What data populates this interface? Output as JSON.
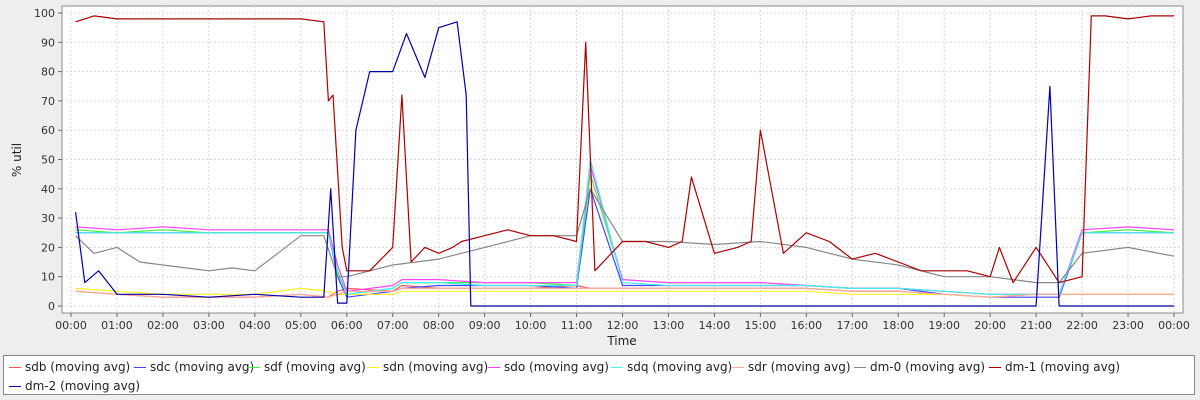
{
  "chart_data": {
    "type": "line",
    "title": "",
    "xlabel": "Time",
    "ylabel": "% util",
    "ylim": [
      0,
      100
    ],
    "y_ticks": [
      0,
      10,
      20,
      30,
      40,
      50,
      60,
      70,
      80,
      90,
      100
    ],
    "x_ticks": [
      "00:00",
      "01:00",
      "02:00",
      "03:00",
      "04:00",
      "05:00",
      "06:00",
      "07:00",
      "08:00",
      "09:00",
      "10:00",
      "11:00",
      "12:00",
      "13:00",
      "14:00",
      "15:00",
      "16:00",
      "17:00",
      "18:00",
      "19:00",
      "20:00",
      "21:00",
      "22:00",
      "23:00",
      "00:00"
    ],
    "grid": true,
    "legend_position": "bottom",
    "x_unit": "hours since 00:00",
    "series": [
      {
        "name": "sdb (moving avg)",
        "color": "#ff5555",
        "x": [
          0.1,
          1,
          2,
          3,
          4,
          5,
          5.6,
          5.8,
          6,
          7,
          7.2,
          8,
          9,
          10,
          11,
          11.3,
          12,
          13,
          14,
          15,
          16,
          17,
          18,
          19,
          20,
          21,
          21.5,
          22,
          23,
          24
        ],
        "y": [
          5,
          4,
          3,
          3,
          3,
          4,
          3,
          5,
          6,
          5,
          7,
          6,
          6,
          6,
          7,
          6,
          6,
          6,
          6,
          6,
          6,
          5,
          5,
          4,
          3,
          4,
          4,
          4,
          4,
          4
        ]
      },
      {
        "name": "sdc (moving avg)",
        "color": "#4444ff",
        "x": [
          0.1,
          1,
          2,
          3,
          4,
          5,
          5.6,
          5.8,
          6,
          7,
          7.2,
          8,
          9,
          10,
          11,
          11.3,
          12,
          13,
          14,
          15,
          16,
          17,
          18,
          19,
          20,
          21,
          21.5,
          22,
          23,
          24
        ],
        "y": [
          25,
          25,
          25,
          25,
          25,
          25,
          25,
          10,
          3,
          5,
          6,
          7,
          7,
          7,
          6,
          40,
          7,
          7,
          7,
          7,
          7,
          6,
          6,
          4,
          3,
          3,
          3,
          25,
          25,
          25
        ]
      },
      {
        "name": "sdf (moving avg)",
        "color": "#44ee44",
        "x": [
          0.1,
          1,
          2,
          3,
          4,
          5,
          5.6,
          5.8,
          6,
          7,
          7.2,
          8,
          9,
          10,
          11,
          11.3,
          12,
          13,
          14,
          15,
          16,
          17,
          18,
          19,
          20,
          21,
          21.5,
          22,
          23,
          24
        ],
        "y": [
          26,
          25,
          26,
          25,
          25,
          25,
          25,
          12,
          4,
          6,
          8,
          8,
          8,
          8,
          7,
          45,
          9,
          8,
          8,
          8,
          7,
          6,
          6,
          5,
          4,
          4,
          4,
          25,
          26,
          25
        ]
      },
      {
        "name": "sdn (moving avg)",
        "color": "#ffee22",
        "x": [
          0.1,
          1,
          2,
          3,
          4,
          5,
          5.6,
          5.8,
          6,
          7,
          7.2,
          8,
          9,
          10,
          11,
          11.3,
          12,
          13,
          14,
          15,
          16,
          17,
          18,
          19,
          20,
          21,
          21.5,
          22,
          23,
          24
        ],
        "y": [
          6,
          5,
          4,
          4,
          4,
          6,
          5,
          4,
          4,
          4,
          5,
          5,
          5,
          5,
          5,
          5,
          5,
          5,
          5,
          5,
          5,
          4,
          4,
          4,
          3,
          4,
          4,
          4,
          4,
          4
        ]
      },
      {
        "name": "sdo (moving avg)",
        "color": "#ff44ff",
        "x": [
          0.1,
          1,
          2,
          3,
          4,
          5,
          5.6,
          5.8,
          6,
          7,
          7.2,
          8,
          9,
          10,
          11,
          11.3,
          12,
          13,
          14,
          15,
          16,
          17,
          18,
          19,
          20,
          21,
          21.5,
          22,
          23,
          24
        ],
        "y": [
          27,
          26,
          27,
          26,
          26,
          26,
          26,
          14,
          5,
          7,
          9,
          9,
          8,
          8,
          8,
          48,
          9,
          8,
          8,
          8,
          7,
          6,
          6,
          5,
          4,
          4,
          4,
          26,
          27,
          26
        ]
      },
      {
        "name": "sdq (moving avg)",
        "color": "#44eeee",
        "x": [
          0.1,
          1,
          2,
          3,
          4,
          5,
          5.6,
          5.8,
          6,
          7,
          7.2,
          8,
          9,
          10,
          11,
          11.3,
          12,
          13,
          14,
          15,
          16,
          17,
          18,
          19,
          20,
          21,
          21.5,
          22,
          23,
          24
        ],
        "y": [
          25,
          25,
          25,
          25,
          25,
          25,
          25,
          11,
          4,
          6,
          8,
          8,
          7,
          7,
          7,
          50,
          8,
          7,
          7,
          7,
          7,
          6,
          6,
          5,
          4,
          4,
          4,
          25,
          25,
          25
        ]
      },
      {
        "name": "sdr (moving avg)",
        "color": "#ffaa99",
        "x": [
          0.1,
          1,
          2,
          3,
          4,
          5,
          5.6,
          5.8,
          6,
          7,
          7.2,
          8,
          9,
          10,
          11,
          11.3,
          12,
          13,
          14,
          15,
          16,
          17,
          18,
          19,
          20,
          21,
          21.5,
          22,
          23,
          24
        ],
        "y": [
          5,
          4,
          3,
          3,
          3,
          4,
          3,
          4,
          5,
          5,
          6,
          6,
          6,
          6,
          6,
          6,
          6,
          6,
          6,
          6,
          6,
          5,
          5,
          4,
          3,
          4,
          4,
          4,
          4,
          4
        ]
      },
      {
        "name": "dm-0 (moving avg)",
        "color": "#888888",
        "x": [
          0.1,
          0.5,
          1,
          1.5,
          2,
          2.5,
          3,
          3.5,
          4,
          4.5,
          5,
          5.5,
          5.8,
          6,
          7,
          8,
          9,
          10,
          11,
          11.3,
          12,
          13,
          14,
          15,
          16,
          17,
          18,
          19,
          20,
          21,
          21.5,
          22,
          23,
          24
        ],
        "y": [
          24,
          18,
          20,
          15,
          14,
          13,
          12,
          13,
          12,
          18,
          24,
          24,
          10,
          10,
          14,
          16,
          20,
          24,
          24,
          40,
          22,
          22,
          21,
          22,
          20,
          16,
          14,
          10,
          10,
          8,
          8,
          18,
          20,
          17
        ]
      },
      {
        "name": "dm-1 (moving avg)",
        "color": "#aa0000",
        "x": [
          0.1,
          0.5,
          1,
          2,
          3,
          4,
          5,
          5.5,
          5.6,
          5.7,
          5.9,
          6,
          6.5,
          7,
          7.2,
          7.4,
          7.7,
          8,
          8.3,
          8.5,
          9,
          9.5,
          10,
          10.5,
          11,
          11.2,
          11.4,
          12,
          12.5,
          13,
          13.3,
          13.5,
          14,
          14.5,
          14.8,
          15,
          15.5,
          16,
          16.5,
          17,
          17.5,
          18,
          18.5,
          19,
          19.5,
          20,
          20.2,
          20.5,
          21,
          21.5,
          22,
          22.2,
          22.5,
          23,
          23.5,
          24
        ],
        "y": [
          97,
          99,
          98,
          98,
          98,
          98,
          98,
          97,
          70,
          72,
          20,
          12,
          12,
          20,
          72,
          15,
          20,
          18,
          20,
          22,
          24,
          26,
          24,
          24,
          22,
          90,
          12,
          22,
          22,
          20,
          22,
          44,
          18,
          20,
          22,
          60,
          18,
          25,
          22,
          16,
          18,
          15,
          12,
          12,
          12,
          10,
          20,
          8,
          20,
          8,
          10,
          99,
          99,
          98,
          99,
          99
        ]
      },
      {
        "name": "dm-2 (moving avg)",
        "color": "#0000aa",
        "x": [
          0.1,
          0.3,
          0.6,
          1,
          2,
          3,
          4,
          5,
          5.5,
          5.65,
          5.8,
          6,
          6.2,
          6.5,
          7,
          7.3,
          7.7,
          8,
          8.4,
          8.6,
          8.7,
          9,
          10,
          11,
          12,
          13,
          14,
          15,
          16,
          17,
          18,
          19,
          20,
          21,
          21.3,
          21.5,
          21.6,
          22,
          22.5,
          23,
          24
        ],
        "y": [
          32,
          8,
          12,
          4,
          4,
          3,
          4,
          3,
          3,
          40,
          1,
          1,
          60,
          80,
          80,
          93,
          78,
          95,
          97,
          72,
          0,
          0,
          0,
          0,
          0,
          0,
          0,
          0,
          0,
          0,
          0,
          0,
          0,
          0,
          75,
          0,
          0,
          0,
          0,
          0,
          0
        ]
      }
    ]
  }
}
